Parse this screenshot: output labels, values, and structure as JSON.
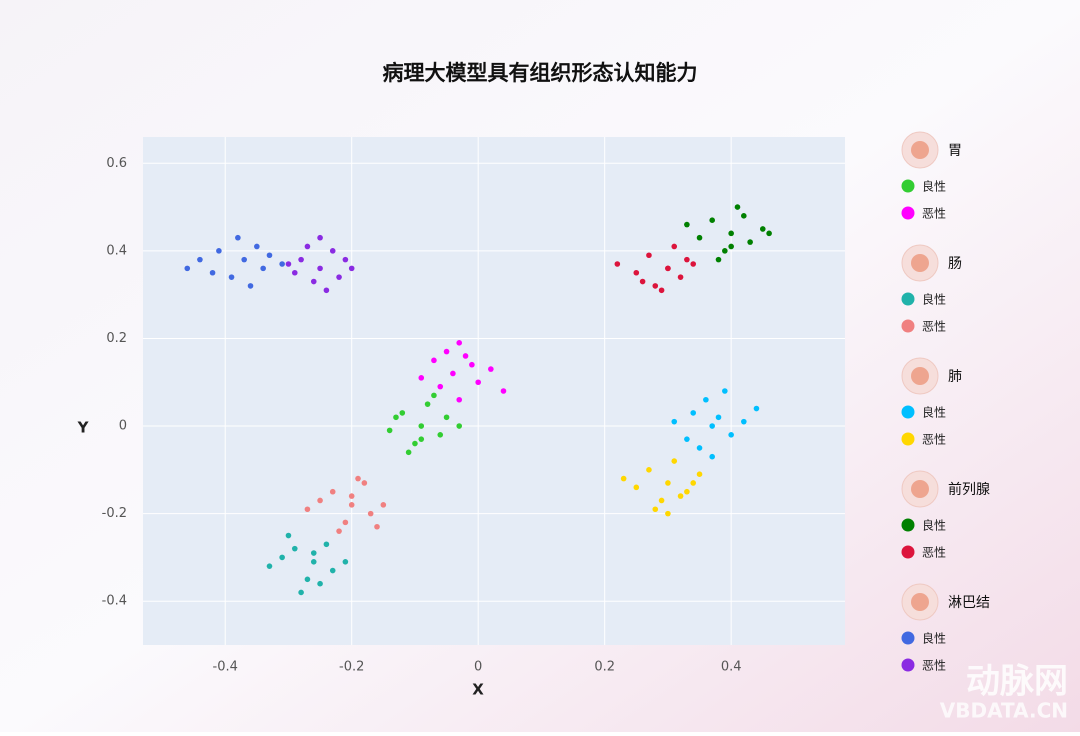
{
  "chart_data": {
    "type": "scatter",
    "title": "病理大模型具有组织形态认知能力",
    "x_label": "X",
    "y_label": "Y",
    "xlim": [
      -0.53,
      0.58
    ],
    "ylim": [
      -0.5,
      0.66
    ],
    "xticks": [
      -0.4,
      -0.2,
      0,
      0.2,
      0.4
    ],
    "yticks": [
      -0.4,
      -0.2,
      0,
      0.2,
      0.4,
      0.6
    ],
    "grid": true,
    "legend": "right",
    "series": [
      {
        "group": "胃",
        "name": "良性",
        "color": "#32cd32",
        "x": [
          -0.09,
          -0.12,
          -0.06,
          -0.1,
          -0.05,
          -0.14,
          -0.08,
          -0.11,
          -0.03,
          -0.07,
          -0.13,
          -0.09
        ],
        "values": [
          0.0,
          0.03,
          -0.02,
          -0.04,
          0.02,
          -0.01,
          0.05,
          -0.06,
          0.0,
          0.07,
          0.02,
          -0.03
        ]
      },
      {
        "group": "胃",
        "name": "恶性",
        "color": "#ff00ff",
        "x": [
          -0.04,
          -0.07,
          0.0,
          -0.02,
          -0.06,
          0.02,
          -0.03,
          -0.09,
          0.04,
          -0.01,
          -0.05,
          -0.03
        ],
        "values": [
          0.12,
          0.15,
          0.1,
          0.16,
          0.09,
          0.13,
          0.19,
          0.11,
          0.08,
          0.14,
          0.17,
          0.06
        ]
      },
      {
        "group": "肠",
        "name": "良性",
        "color": "#20b2aa",
        "x": [
          -0.26,
          -0.29,
          -0.23,
          -0.27,
          -0.31,
          -0.24,
          -0.28,
          -0.21,
          -0.3,
          -0.25,
          -0.33,
          -0.26
        ],
        "values": [
          -0.31,
          -0.28,
          -0.33,
          -0.35,
          -0.3,
          -0.27,
          -0.38,
          -0.31,
          -0.25,
          -0.36,
          -0.32,
          -0.29
        ]
      },
      {
        "group": "肠",
        "name": "恶性",
        "color": "#f08080",
        "x": [
          -0.2,
          -0.23,
          -0.17,
          -0.21,
          -0.25,
          -0.18,
          -0.22,
          -0.15,
          -0.19,
          -0.27,
          -0.16,
          -0.2
        ],
        "values": [
          -0.18,
          -0.15,
          -0.2,
          -0.22,
          -0.17,
          -0.13,
          -0.24,
          -0.18,
          -0.12,
          -0.19,
          -0.23,
          -0.16
        ]
      },
      {
        "group": "肺",
        "name": "良性",
        "color": "#00bfff",
        "x": [
          0.37,
          0.34,
          0.4,
          0.36,
          0.42,
          0.33,
          0.39,
          0.35,
          0.44,
          0.38,
          0.31,
          0.37
        ],
        "values": [
          0.0,
          0.03,
          -0.02,
          0.06,
          0.01,
          -0.03,
          0.08,
          -0.05,
          0.04,
          0.02,
          0.01,
          -0.07
        ]
      },
      {
        "group": "肺",
        "name": "恶性",
        "color": "#ffd700",
        "x": [
          0.3,
          0.27,
          0.33,
          0.29,
          0.35,
          0.25,
          0.31,
          0.28,
          0.34,
          0.3,
          0.23,
          0.32
        ],
        "values": [
          -0.13,
          -0.1,
          -0.15,
          -0.17,
          -0.11,
          -0.14,
          -0.08,
          -0.19,
          -0.13,
          -0.2,
          -0.12,
          -0.16
        ]
      },
      {
        "group": "前列腺",
        "name": "良性",
        "color": "#008000",
        "x": [
          0.4,
          0.37,
          0.43,
          0.39,
          0.45,
          0.35,
          0.41,
          0.38,
          0.46,
          0.4,
          0.33,
          0.42
        ],
        "values": [
          0.44,
          0.47,
          0.42,
          0.4,
          0.45,
          0.43,
          0.5,
          0.38,
          0.44,
          0.41,
          0.46,
          0.48
        ]
      },
      {
        "group": "前列腺",
        "name": "恶性",
        "color": "#dc143c",
        "x": [
          0.3,
          0.27,
          0.32,
          0.28,
          0.34,
          0.25,
          0.31,
          0.29,
          0.33,
          0.26,
          0.3,
          0.22
        ],
        "values": [
          0.36,
          0.39,
          0.34,
          0.32,
          0.37,
          0.35,
          0.41,
          0.31,
          0.38,
          0.33,
          0.36,
          0.37
        ]
      },
      {
        "group": "淋巴结",
        "name": "良性",
        "color": "#4169e1",
        "x": [
          -0.37,
          -0.41,
          -0.34,
          -0.39,
          -0.44,
          -0.35,
          -0.38,
          -0.31,
          -0.42,
          -0.36,
          -0.46,
          -0.33
        ],
        "values": [
          0.38,
          0.4,
          0.36,
          0.34,
          0.38,
          0.41,
          0.43,
          0.37,
          0.35,
          0.32,
          0.36,
          0.39
        ]
      },
      {
        "group": "淋巴结",
        "name": "恶性",
        "color": "#8a2be2",
        "x": [
          -0.25,
          -0.28,
          -0.22,
          -0.26,
          -0.3,
          -0.23,
          -0.27,
          -0.2,
          -0.24,
          -0.29,
          -0.21,
          -0.25
        ],
        "values": [
          0.36,
          0.38,
          0.34,
          0.33,
          0.37,
          0.4,
          0.41,
          0.36,
          0.31,
          0.35,
          0.38,
          0.43
        ]
      }
    ],
    "watermark": {
      "brand": "动脉网",
      "site": "VBDATA.CN"
    }
  }
}
